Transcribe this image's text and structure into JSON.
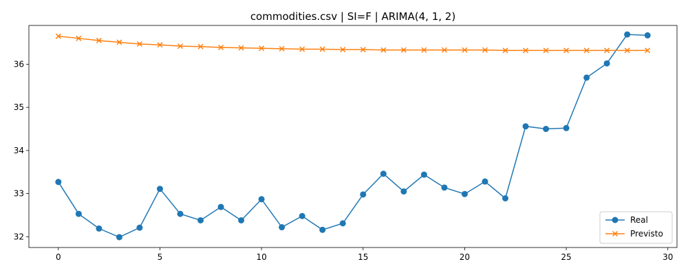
{
  "chart_data": {
    "type": "line",
    "title": "commodities.csv | SI=F | ARIMA(4, 1, 2)",
    "xlabel": "",
    "ylabel": "",
    "xlim": [
      -1.45,
      30.45
    ],
    "ylim": [
      31.75,
      36.9
    ],
    "x_ticks": [
      0,
      5,
      10,
      15,
      20,
      25,
      30
    ],
    "y_ticks": [
      32,
      33,
      34,
      35,
      36
    ],
    "grid": false,
    "legend_position": "bottom-right",
    "x": [
      0,
      1,
      2,
      3,
      4,
      5,
      6,
      7,
      8,
      9,
      10,
      11,
      12,
      13,
      14,
      15,
      16,
      17,
      18,
      19,
      20,
      21,
      22,
      23,
      24,
      25,
      26,
      27,
      28,
      29
    ],
    "series": [
      {
        "name": "Real",
        "color": "#1f77b4",
        "marker": "circle",
        "values": [
          33.27,
          32.53,
          32.19,
          31.99,
          32.21,
          33.11,
          32.53,
          32.38,
          32.69,
          32.38,
          32.87,
          32.22,
          32.48,
          32.16,
          32.31,
          32.98,
          33.46,
          33.05,
          33.44,
          33.14,
          32.99,
          33.28,
          32.89,
          34.56,
          34.5,
          34.52,
          35.69,
          36.02,
          36.69,
          36.67
        ]
      },
      {
        "name": "Previsto",
        "color": "#ff7f0e",
        "marker": "x",
        "values": [
          36.65,
          36.6,
          36.55,
          36.51,
          36.47,
          36.45,
          36.42,
          36.41,
          36.39,
          36.38,
          36.37,
          36.36,
          36.35,
          36.35,
          36.34,
          36.34,
          36.33,
          36.33,
          36.33,
          36.33,
          36.33,
          36.33,
          36.32,
          36.32,
          36.32,
          36.32,
          36.32,
          36.32,
          36.32,
          36.32
        ]
      }
    ]
  }
}
